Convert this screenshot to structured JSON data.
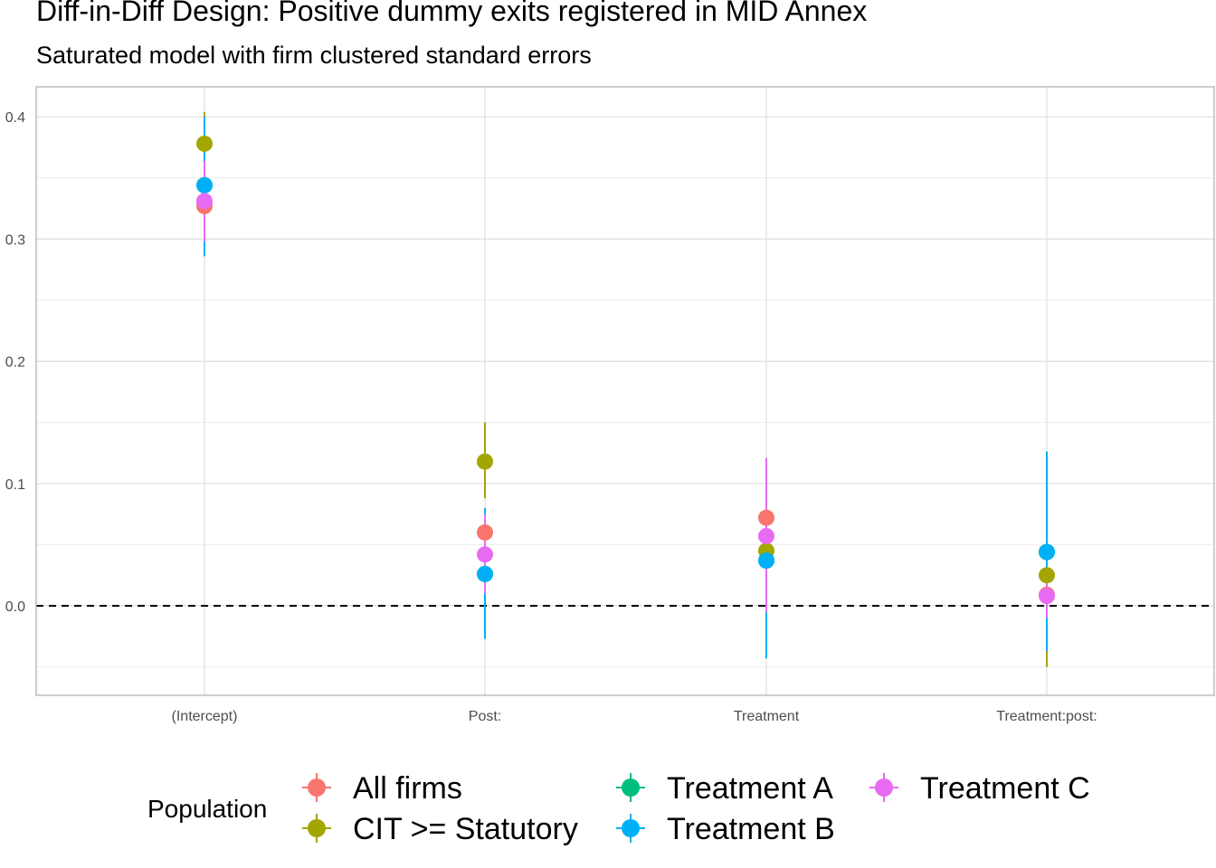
{
  "chart_data": {
    "type": "scatter",
    "title": "Diff-in-Diff Design: Positive dummy exits registered in MID Annex",
    "subtitle": "Saturated model with firm clustered standard errors",
    "xlabel": "",
    "ylabel": "",
    "categories": [
      "(Intercept)",
      "Post:",
      "Treatment",
      "Treatment:post:"
    ],
    "ylim": [
      -0.072,
      0.425
    ],
    "yticks": [
      0.0,
      0.1,
      0.2,
      0.3,
      0.4
    ],
    "ytick_labels": [
      "0.0",
      "0.1",
      "0.2",
      "0.3",
      "0.4"
    ],
    "reference_line": {
      "y": 0.0,
      "style": "dashed"
    },
    "grid": true,
    "legend": {
      "title": "Population",
      "position": "bottom"
    },
    "series": [
      {
        "name": "All firms",
        "color": "#F8766D",
        "values": [
          0.327,
          0.06,
          0.072,
          0.009
        ],
        "lower": [
          0.305,
          0.04,
          0.045,
          0.0
        ],
        "upper": [
          0.35,
          0.08,
          0.1,
          0.02
        ]
      },
      {
        "name": "CIT >= Statutory",
        "color": "#A3A500",
        "values": [
          0.378,
          0.118,
          0.045,
          0.025
        ],
        "lower": [
          0.351,
          0.088,
          -0.013,
          -0.05
        ],
        "upper": [
          0.404,
          0.15,
          0.105,
          0.1
        ]
      },
      {
        "name": "Treatment A",
        "color": "#00BF7D",
        "values": [
          0.344,
          0.026,
          0.037,
          0.044
        ],
        "lower": [
          0.297,
          0.002,
          -0.043,
          -0.037
        ],
        "upper": [
          0.391,
          0.05,
          0.117,
          0.126
        ]
      },
      {
        "name": "Treatment B",
        "color": "#00B0F6",
        "values": [
          0.344,
          0.026,
          0.037,
          0.044
        ],
        "lower": [
          0.286,
          -0.027,
          -0.043,
          -0.037
        ],
        "upper": [
          0.4,
          0.08,
          0.117,
          0.126
        ]
      },
      {
        "name": "Treatment C",
        "color": "#E76BF3",
        "values": [
          0.331,
          0.042,
          0.057,
          0.008
        ],
        "lower": [
          0.298,
          0.01,
          -0.005,
          -0.01
        ],
        "upper": [
          0.364,
          0.075,
          0.121,
          0.026
        ]
      }
    ]
  }
}
